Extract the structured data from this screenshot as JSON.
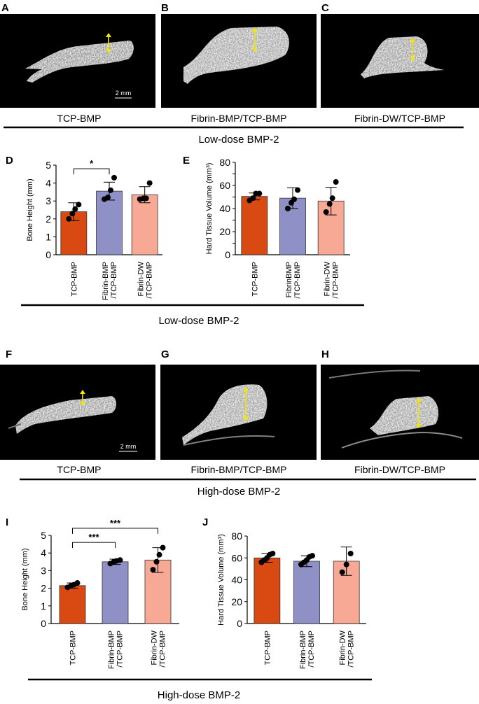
{
  "colors": {
    "tcp": "#d94a13",
    "fibrin_bmp": "#8e90c6",
    "fibrin_dw": "#f8a996",
    "arrow": "#f2e600"
  },
  "panel_letters": [
    "A",
    "B",
    "C",
    "D",
    "E",
    "F",
    "G",
    "H",
    "I",
    "J"
  ],
  "scale_bar": "2 mm",
  "low_dose": {
    "images": [
      {
        "letter": "A",
        "caption": "TCP-BMP"
      },
      {
        "letter": "B",
        "caption": "Fibrin-BMP/TCP-BMP"
      },
      {
        "letter": "C",
        "caption": "Fibrin-DW/TCP-BMP"
      }
    ],
    "group_label": "Low-dose BMP-2",
    "plots_group_label": "Low-dose BMP-2"
  },
  "high_dose": {
    "images": [
      {
        "letter": "F",
        "caption": "TCP-BMP"
      },
      {
        "letter": "G",
        "caption": "Fibrin-BMP/TCP-BMP"
      },
      {
        "letter": "H",
        "caption": "Fibrin-DW/TCP-BMP"
      }
    ],
    "group_label": "High-dose BMP-2",
    "plots_group_label": "High-dose BMP-2"
  },
  "chart_data": [
    {
      "panel": "D",
      "type": "bar",
      "title": "",
      "ylabel": "Bone Height (mm)",
      "ylim": [
        0,
        5
      ],
      "yticks": [
        0,
        1,
        2,
        3,
        4,
        5
      ],
      "categories": [
        [
          "TCP-BMP"
        ],
        [
          "Fibrin-BMP",
          "/TCP-BMP"
        ],
        [
          "Fibrin-DW",
          "/TCP-BMP"
        ]
      ],
      "values": [
        2.4,
        3.55,
        3.35
      ],
      "errors": [
        0.5,
        0.5,
        0.45
      ],
      "points": [
        [
          2.0,
          2.3,
          2.55,
          2.8
        ],
        [
          3.1,
          3.2,
          3.6,
          4.3
        ],
        [
          3.1,
          3.15,
          3.15,
          4.0
        ]
      ],
      "significance": [
        {
          "from": 0,
          "to": 1,
          "label": "*",
          "y": 4.8
        }
      ]
    },
    {
      "panel": "E",
      "type": "bar",
      "title": "",
      "ylabel": "Hard Tissue Volume (mm³)",
      "ylim": [
        0,
        80
      ],
      "yticks": [
        0,
        10,
        20,
        30,
        40,
        50,
        60,
        70,
        80
      ],
      "ytick_labels": [
        "0",
        "",
        "20",
        "",
        "40",
        "",
        "60",
        "",
        "80"
      ],
      "categories": [
        [
          "TCP-BMP"
        ],
        [
          "FibrinBMP",
          "/TCP-BMP"
        ],
        [
          "Fibrin-DW",
          "/TCP-BMP"
        ]
      ],
      "values": [
        50.5,
        49,
        46.5
      ],
      "errors": [
        3,
        9,
        12
      ],
      "points": [
        [
          47,
          49,
          53,
          53
        ],
        [
          40,
          45,
          48,
          56
        ],
        [
          37,
          44,
          49,
          63
        ]
      ],
      "significance": []
    },
    {
      "panel": "I",
      "type": "bar",
      "title": "",
      "ylabel": "Bone Height (mm)",
      "ylim": [
        0,
        5
      ],
      "yticks": [
        0,
        1,
        2,
        3,
        4,
        5
      ],
      "categories": [
        [
          "TCP-BMP"
        ],
        [
          "Fibrin-BMP",
          "/TCP-BMP"
        ],
        [
          "Fibrin-DW",
          "/TCP-BMP"
        ]
      ],
      "values": [
        2.15,
        3.5,
        3.6
      ],
      "errors": [
        0.15,
        0.15,
        0.7
      ],
      "points": [
        [
          2.05,
          2.15,
          2.2,
          2.3
        ],
        [
          3.4,
          3.5,
          3.55,
          3.6
        ],
        [
          3.05,
          3.5,
          3.9,
          4.3
        ]
      ],
      "significance": [
        {
          "from": 0,
          "to": 1,
          "label": "***",
          "y": 4.6
        },
        {
          "from": 0,
          "to": 2,
          "label": "***",
          "y": 5.4
        }
      ]
    },
    {
      "panel": "J",
      "type": "bar",
      "title": "",
      "ylabel": "Hard Tissue Volume (mm³)",
      "ylim": [
        0,
        80
      ],
      "yticks": [
        0,
        20,
        40,
        60,
        80
      ],
      "categories": [
        [
          "TCP-BMP"
        ],
        [
          "Fibrin-BMP",
          "/TCP-BMP"
        ],
        [
          "Fibrin-DW",
          "/TCP-BMP"
        ]
      ],
      "values": [
        60,
        57,
        57
      ],
      "errors": [
        4,
        5,
        13
      ],
      "points": [
        [
          56,
          58,
          60,
          63,
          64
        ],
        [
          54,
          56,
          58,
          61,
          62
        ],
        [
          47,
          54,
          64
        ]
      ],
      "significance": []
    }
  ]
}
